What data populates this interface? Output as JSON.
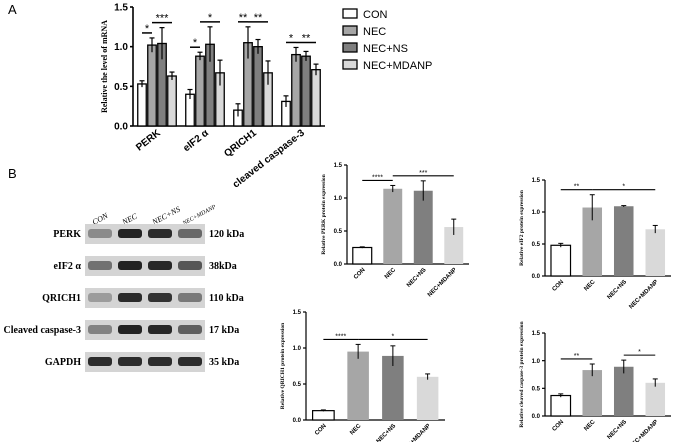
{
  "panels": {
    "A": "A",
    "B": "B"
  },
  "colors": {
    "con": "#ffffff",
    "nec": "#a6a6a6",
    "nec_ns": "#7f7f7f",
    "nec_mdanp": "#d9d9d9",
    "axis": "#000000",
    "band": "#1a1a1a"
  },
  "chart_data": [
    {
      "id": "mrna",
      "type": "bar",
      "title": "",
      "xlabel": "",
      "ylabel": "Relative the level of mRNA",
      "ylim": [
        0,
        1.5
      ],
      "yticks": [
        "0.0",
        "0.5",
        "1.0",
        "1.5"
      ],
      "categories": [
        "PERK",
        "eIF2 α",
        "QRICH1",
        "cleaved caspase-3"
      ],
      "legend": {
        "position": "right"
      },
      "series": [
        {
          "name": "CON",
          "values": [
            0.53,
            0.4,
            0.2,
            0.31
          ],
          "errors": [
            0.04,
            0.06,
            0.08,
            0.07
          ]
        },
        {
          "name": "NEC",
          "values": [
            1.02,
            0.88,
            1.05,
            0.9
          ],
          "errors": [
            0.09,
            0.05,
            0.2,
            0.09
          ]
        },
        {
          "name": "NEC+NS",
          "values": [
            1.04,
            1.03,
            1.0,
            0.88
          ],
          "errors": [
            0.2,
            0.22,
            0.09,
            0.06
          ]
        },
        {
          "name": "NEC+MDANP",
          "values": [
            0.63,
            0.67,
            0.67,
            0.71
          ],
          "errors": [
            0.05,
            0.16,
            0.15,
            0.07
          ]
        }
      ],
      "significance": [
        {
          "group": 0,
          "from": 0,
          "to": 1,
          "label": "*"
        },
        {
          "group": 0,
          "from": 1,
          "to": 3,
          "label": "***"
        },
        {
          "group": 1,
          "from": 0,
          "to": 1,
          "label": "*"
        },
        {
          "group": 1,
          "from": 1,
          "to": 3,
          "label": "*"
        },
        {
          "group": 2,
          "from": 0,
          "to": 1,
          "label": "**"
        },
        {
          "group": 2,
          "from": 1,
          "to": 3,
          "label": "**"
        },
        {
          "group": 3,
          "from": 0,
          "to": 1,
          "label": "*"
        },
        {
          "group": 3,
          "from": 1,
          "to": 3,
          "label": "**"
        }
      ]
    },
    {
      "id": "perk",
      "type": "bar",
      "ylabel": "Relative PERK protein expression",
      "ylim": [
        0,
        1.5
      ],
      "yticks": [
        "0.0",
        "0.5",
        "1.0",
        "1.5"
      ],
      "categories": [
        "CON",
        "NEC",
        "NEC+NS",
        "NEC+MDANP"
      ],
      "values": [
        0.25,
        1.14,
        1.11,
        0.56
      ],
      "errors": [
        0.01,
        0.05,
        0.15,
        0.12
      ],
      "significance": [
        {
          "from": 0,
          "to": 1,
          "label": "****"
        },
        {
          "from": 1,
          "to": 3,
          "label": "***"
        }
      ]
    },
    {
      "id": "eif2",
      "type": "bar",
      "ylabel": "Relative eIF2 protein expression",
      "ylim": [
        0,
        1.5
      ],
      "yticks": [
        "0.0",
        "0.5",
        "1.0",
        "1.5"
      ],
      "categories": [
        "CON",
        "NEC",
        "NEC+NS",
        "NEC+MDANP"
      ],
      "values": [
        0.48,
        1.07,
        1.09,
        0.73
      ],
      "errors": [
        0.03,
        0.2,
        0.01,
        0.06
      ],
      "significance": [
        {
          "from": 0,
          "to": 1,
          "label": "**"
        },
        {
          "from": 1,
          "to": 3,
          "label": "*"
        }
      ]
    },
    {
      "id": "qrich1",
      "type": "bar",
      "ylabel": "Relative QRICH1 protein expression",
      "ylim": [
        0,
        1.5
      ],
      "yticks": [
        "0.0",
        "0.5",
        "1.0",
        "1.5"
      ],
      "categories": [
        "CON",
        "NEC",
        "NEC+NS",
        "NEC+MDANP"
      ],
      "values": [
        0.13,
        0.95,
        0.89,
        0.6
      ],
      "errors": [
        0.01,
        0.1,
        0.14,
        0.04
      ],
      "significance": [
        {
          "from": 0,
          "to": 1,
          "label": "****"
        },
        {
          "from": 1,
          "to": 3,
          "label": "*"
        }
      ]
    },
    {
      "id": "casp3",
      "type": "bar",
      "ylabel": "Relative cleaved caspase-3 protein expression",
      "ylim": [
        0,
        1.5
      ],
      "yticks": [
        "0.0",
        "0.5",
        "1.0",
        "1.5"
      ],
      "categories": [
        "CON",
        "NEC",
        "NEC+NS",
        "NEC+MDANP"
      ],
      "values": [
        0.37,
        0.83,
        0.89,
        0.6
      ],
      "errors": [
        0.03,
        0.11,
        0.12,
        0.07
      ],
      "significance": [
        {
          "from": 0,
          "to": 1,
          "label": "**"
        },
        {
          "from": 2,
          "to": 3,
          "label": "*"
        }
      ]
    }
  ],
  "western_blot": {
    "lanes": [
      "CON",
      "NEC",
      "NEC+NS",
      "NEC+MDANP"
    ],
    "rows": [
      {
        "protein": "PERK",
        "size": "120 kDa",
        "intensity": [
          0.35,
          0.95,
          0.9,
          0.55
        ]
      },
      {
        "protein": "eIF2 α",
        "size": "38kDa",
        "intensity": [
          0.5,
          0.95,
          0.92,
          0.65
        ]
      },
      {
        "protein": "QRICH1",
        "size": "110 kDa",
        "intensity": [
          0.25,
          0.9,
          0.85,
          0.45
        ]
      },
      {
        "protein": "Cleaved caspase-3",
        "size": "17 kDa",
        "intensity": [
          0.4,
          0.95,
          0.92,
          0.6
        ]
      },
      {
        "protein": "GAPDH",
        "size": "35 kDa",
        "intensity": [
          0.9,
          0.9,
          0.9,
          0.9
        ]
      }
    ]
  }
}
